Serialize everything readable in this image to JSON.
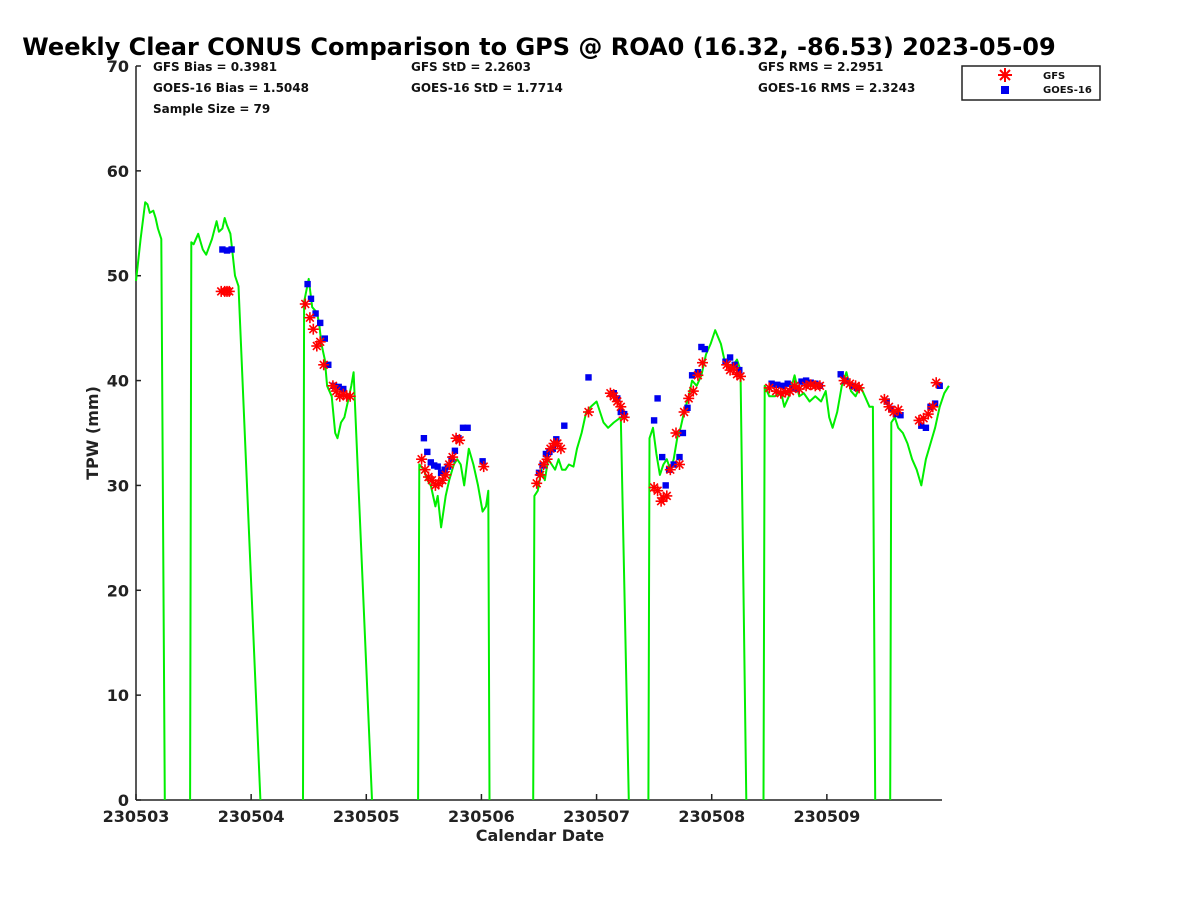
{
  "chart_data": {
    "type": "scatter",
    "title": "Weekly Clear CONUS Comparison to GPS @ ROA0 (16.32, -86.53) 2023-05-09",
    "xlabel": "Calendar Date",
    "ylabel": "TPW (mm)",
    "x_ticks": [
      "230503",
      "230504",
      "230505",
      "230506",
      "230507",
      "230508",
      "230509"
    ],
    "xlim": [
      "230503",
      "230510"
    ],
    "ylim": [
      0,
      70
    ],
    "y_ticks": [
      0,
      10,
      20,
      30,
      40,
      50,
      60,
      70
    ],
    "grid": false,
    "legend_placement": "top-right",
    "stats": {
      "gfs_bias": "GFS Bias = 0.3981",
      "goes_bias": "GOES-16 Bias = 1.5048",
      "sample_size": "Sample Size = 79",
      "gfs_std": "GFS StD = 2.2603",
      "goes_std": "GOES-16 StD = 1.7714",
      "gfs_rms": "GFS RMS = 2.2951",
      "goes_rms": "GOES-16 RMS = 2.3243"
    },
    "colors": {
      "gps": "#00ee00",
      "gfs": "#ff0000",
      "goes": "#0000ee"
    },
    "gps_line": [
      [
        3.0,
        49.5
      ],
      [
        3.04,
        53.5
      ],
      [
        3.08,
        57.0
      ],
      [
        3.1,
        56.8
      ],
      [
        3.12,
        56.0
      ],
      [
        3.15,
        56.2
      ],
      [
        3.17,
        55.5
      ],
      [
        3.19,
        54.5
      ],
      [
        3.22,
        53.5
      ],
      [
        3.25,
        0
      ],
      null,
      [
        3.47,
        0
      ],
      [
        3.48,
        53.2
      ],
      [
        3.5,
        53.0
      ],
      [
        3.54,
        54.0
      ],
      [
        3.58,
        52.5
      ],
      [
        3.61,
        52.0
      ],
      [
        3.66,
        53.5
      ],
      [
        3.7,
        55.2
      ],
      [
        3.72,
        54.2
      ],
      [
        3.75,
        54.5
      ],
      [
        3.77,
        55.5
      ],
      [
        3.79,
        54.8
      ],
      [
        3.82,
        54.0
      ],
      [
        3.84,
        52.0
      ],
      [
        3.86,
        50.0
      ],
      [
        3.89,
        49.0
      ],
      [
        4.08,
        0
      ],
      null,
      [
        4.45,
        0
      ],
      [
        4.46,
        47.5
      ],
      [
        4.5,
        49.7
      ],
      [
        4.53,
        47.0
      ],
      [
        4.57,
        46.5
      ],
      [
        4.59,
        45.5
      ],
      [
        4.61,
        43.5
      ],
      [
        4.64,
        42.0
      ],
      [
        4.66,
        39.5
      ],
      [
        4.7,
        38.5
      ],
      [
        4.73,
        35.0
      ],
      [
        4.75,
        34.5
      ],
      [
        4.78,
        36.0
      ],
      [
        4.81,
        36.5
      ],
      [
        4.84,
        38.0
      ],
      [
        4.87,
        39.5
      ],
      [
        4.89,
        40.8
      ],
      [
        5.05,
        0
      ],
      null,
      [
        5.45,
        0
      ],
      [
        5.46,
        32.0
      ],
      [
        5.5,
        31.5
      ],
      [
        5.53,
        30.5
      ],
      [
        5.56,
        30.0
      ],
      [
        5.6,
        28.0
      ],
      [
        5.62,
        29.0
      ],
      [
        5.65,
        26.0
      ],
      [
        5.69,
        29.0
      ],
      [
        5.72,
        30.5
      ],
      [
        5.76,
        32.0
      ],
      [
        5.79,
        32.5
      ],
      [
        5.82,
        32.0
      ],
      [
        5.85,
        30.0
      ],
      [
        5.89,
        33.5
      ],
      [
        5.93,
        32.0
      ],
      [
        5.97,
        30.0
      ],
      [
        6.01,
        27.5
      ],
      [
        6.04,
        28.0
      ],
      [
        6.06,
        29.5
      ],
      [
        6.07,
        0
      ],
      null,
      [
        6.45,
        0
      ],
      [
        6.46,
        29.0
      ],
      [
        6.49,
        29.5
      ],
      [
        6.52,
        31.5
      ],
      [
        6.55,
        30.5
      ],
      [
        6.58,
        32.5
      ],
      [
        6.61,
        32.0
      ],
      [
        6.64,
        31.5
      ],
      [
        6.67,
        32.5
      ],
      [
        6.7,
        31.5
      ],
      [
        6.73,
        31.5
      ],
      [
        6.76,
        32.0
      ],
      [
        6.8,
        31.8
      ],
      [
        6.83,
        33.5
      ],
      [
        6.87,
        35.0
      ],
      [
        6.91,
        37.0
      ],
      [
        6.95,
        37.5
      ],
      [
        7.0,
        38.0
      ],
      [
        7.06,
        36.0
      ],
      [
        7.1,
        35.5
      ],
      [
        7.15,
        36.0
      ],
      [
        7.21,
        36.5
      ],
      [
        7.28,
        0
      ],
      null,
      [
        7.45,
        0
      ],
      [
        7.46,
        34.5
      ],
      [
        7.49,
        35.5
      ],
      [
        7.52,
        33.0
      ],
      [
        7.55,
        31.0
      ],
      [
        7.58,
        32.0
      ],
      [
        7.61,
        32.5
      ],
      [
        7.64,
        31.5
      ],
      [
        7.67,
        32.5
      ],
      [
        7.7,
        34.5
      ],
      [
        7.73,
        35.5
      ],
      [
        7.76,
        37.0
      ],
      [
        7.8,
        38.5
      ],
      [
        7.83,
        40.0
      ],
      [
        7.87,
        39.5
      ],
      [
        7.91,
        40.5
      ],
      [
        7.95,
        42.5
      ],
      [
        7.99,
        43.5
      ],
      [
        8.03,
        44.8
      ],
      [
        8.08,
        43.5
      ],
      [
        8.12,
        41.5
      ],
      [
        8.17,
        41.2
      ],
      [
        8.22,
        42.0
      ],
      [
        8.25,
        41.0
      ],
      [
        8.3,
        0
      ],
      null,
      [
        8.45,
        0
      ],
      [
        8.46,
        39.5
      ],
      [
        8.5,
        38.5
      ],
      [
        8.55,
        38.5
      ],
      [
        8.6,
        39.0
      ],
      [
        8.63,
        37.5
      ],
      [
        8.67,
        38.5
      ],
      [
        8.72,
        40.5
      ],
      [
        8.76,
        38.5
      ],
      [
        8.8,
        38.8
      ],
      [
        8.85,
        38.0
      ],
      [
        8.9,
        38.5
      ],
      [
        8.95,
        38.0
      ],
      [
        8.99,
        39.0
      ],
      [
        9.02,
        36.5
      ],
      [
        9.05,
        35.5
      ],
      [
        9.09,
        37.0
      ],
      [
        9.13,
        39.5
      ],
      [
        9.17,
        40.8
      ],
      [
        9.21,
        39.0
      ],
      [
        9.25,
        38.5
      ],
      [
        9.29,
        39.5
      ],
      [
        9.33,
        38.5
      ],
      [
        9.37,
        37.5
      ],
      [
        9.4,
        37.5
      ],
      [
        9.42,
        0
      ],
      null,
      [
        9.55,
        0
      ],
      [
        9.56,
        36.0
      ],
      [
        9.59,
        36.5
      ],
      [
        9.62,
        35.5
      ],
      [
        9.66,
        35.0
      ],
      [
        9.7,
        34.0
      ],
      [
        9.74,
        32.5
      ],
      [
        9.78,
        31.5
      ],
      [
        9.82,
        30.0
      ],
      [
        9.86,
        32.5
      ],
      [
        9.9,
        34.0
      ],
      [
        9.94,
        35.5
      ],
      [
        9.98,
        37.5
      ],
      [
        10.02,
        38.8
      ],
      [
        10.06,
        39.5
      ]
    ],
    "gfs_points": [
      [
        3.74,
        48.5
      ],
      [
        3.77,
        48.5
      ],
      [
        3.79,
        48.5
      ],
      [
        3.81,
        48.5
      ],
      [
        4.47,
        47.3
      ],
      [
        4.51,
        46.0
      ],
      [
        4.54,
        44.9
      ],
      [
        4.57,
        43.3
      ],
      [
        4.6,
        43.7
      ],
      [
        4.63,
        41.5
      ],
      [
        4.71,
        39.5
      ],
      [
        4.74,
        39.0
      ],
      [
        4.77,
        38.5
      ],
      [
        4.8,
        38.7
      ],
      [
        4.83,
        38.5
      ],
      [
        4.86,
        38.5
      ],
      [
        5.48,
        32.5
      ],
      [
        5.51,
        31.5
      ],
      [
        5.54,
        30.8
      ],
      [
        5.57,
        30.5
      ],
      [
        5.6,
        30.0
      ],
      [
        5.63,
        30.2
      ],
      [
        5.66,
        30.5
      ],
      [
        5.69,
        31.0
      ],
      [
        5.72,
        32.0
      ],
      [
        5.75,
        32.7
      ],
      [
        5.78,
        34.5
      ],
      [
        5.81,
        34.3
      ],
      [
        6.02,
        31.8
      ],
      [
        6.48,
        30.2
      ],
      [
        6.51,
        31.0
      ],
      [
        6.54,
        32.0
      ],
      [
        6.57,
        32.5
      ],
      [
        6.6,
        33.5
      ],
      [
        6.63,
        34.0
      ],
      [
        6.66,
        34.0
      ],
      [
        6.69,
        33.5
      ],
      [
        6.93,
        37.0
      ],
      [
        7.12,
        38.8
      ],
      [
        7.15,
        38.5
      ],
      [
        7.18,
        38.0
      ],
      [
        7.21,
        37.5
      ],
      [
        7.24,
        36.5
      ],
      [
        7.5,
        29.8
      ],
      [
        7.53,
        29.5
      ],
      [
        7.56,
        28.5
      ],
      [
        7.58,
        28.8
      ],
      [
        7.61,
        29.0
      ],
      [
        7.64,
        31.5
      ],
      [
        7.69,
        35.0
      ],
      [
        7.72,
        32.0
      ],
      [
        7.76,
        37.0
      ],
      [
        7.8,
        38.3
      ],
      [
        7.84,
        39.0
      ],
      [
        7.88,
        40.5
      ],
      [
        7.92,
        41.7
      ],
      [
        8.13,
        41.5
      ],
      [
        8.16,
        41.0
      ],
      [
        8.19,
        41.2
      ],
      [
        8.22,
        40.6
      ],
      [
        8.25,
        40.4
      ],
      [
        8.5,
        39.3
      ],
      [
        8.56,
        39.0
      ],
      [
        8.6,
        38.8
      ],
      [
        8.64,
        38.9
      ],
      [
        8.68,
        39.0
      ],
      [
        8.72,
        39.5
      ],
      [
        8.76,
        39.2
      ],
      [
        8.82,
        39.5
      ],
      [
        8.86,
        39.6
      ],
      [
        8.9,
        39.5
      ],
      [
        8.94,
        39.5
      ],
      [
        9.15,
        40.0
      ],
      [
        9.2,
        39.7
      ],
      [
        9.25,
        39.5
      ],
      [
        9.28,
        39.3
      ],
      [
        9.5,
        38.2
      ],
      [
        9.54,
        37.5
      ],
      [
        9.58,
        37.0
      ],
      [
        9.62,
        37.2
      ],
      [
        9.8,
        36.2
      ],
      [
        9.84,
        36.4
      ],
      [
        9.88,
        36.8
      ],
      [
        9.92,
        37.5
      ],
      [
        9.95,
        39.8
      ]
    ],
    "goes_points": [
      [
        3.75,
        52.5
      ],
      [
        3.79,
        52.4
      ],
      [
        3.83,
        52.5
      ],
      [
        4.49,
        49.2
      ],
      [
        4.52,
        47.8
      ],
      [
        4.56,
        46.4
      ],
      [
        4.6,
        45.5
      ],
      [
        4.64,
        44.0
      ],
      [
        4.67,
        41.5
      ],
      [
        4.72,
        39.5
      ],
      [
        4.76,
        39.4
      ],
      [
        4.8,
        39.2
      ],
      [
        5.5,
        34.5
      ],
      [
        5.53,
        33.2
      ],
      [
        5.56,
        32.2
      ],
      [
        5.59,
        31.9
      ],
      [
        5.62,
        31.8
      ],
      [
        5.65,
        31.2
      ],
      [
        5.68,
        31.5
      ],
      [
        5.71,
        31.8
      ],
      [
        5.74,
        32.5
      ],
      [
        5.77,
        33.3
      ],
      [
        5.8,
        34.5
      ],
      [
        5.84,
        35.5
      ],
      [
        5.88,
        35.5
      ],
      [
        6.01,
        32.3
      ],
      [
        6.5,
        31.2
      ],
      [
        6.53,
        31.9
      ],
      [
        6.56,
        33.0
      ],
      [
        6.59,
        33.2
      ],
      [
        6.62,
        33.5
      ],
      [
        6.65,
        34.4
      ],
      [
        6.72,
        35.7
      ],
      [
        6.93,
        40.3
      ],
      [
        7.15,
        38.8
      ],
      [
        7.18,
        38.3
      ],
      [
        7.21,
        37.0
      ],
      [
        7.24,
        36.8
      ],
      [
        7.5,
        36.2
      ],
      [
        7.53,
        38.3
      ],
      [
        7.57,
        32.7
      ],
      [
        7.6,
        30.0
      ],
      [
        7.63,
        31.5
      ],
      [
        7.67,
        32.0
      ],
      [
        7.72,
        32.7
      ],
      [
        7.75,
        35.0
      ],
      [
        7.79,
        37.4
      ],
      [
        7.83,
        40.5
      ],
      [
        7.88,
        40.8
      ],
      [
        7.91,
        43.2
      ],
      [
        7.94,
        43.0
      ],
      [
        8.12,
        41.8
      ],
      [
        8.16,
        42.2
      ],
      [
        8.2,
        41.5
      ],
      [
        8.24,
        41.0
      ],
      [
        8.52,
        39.7
      ],
      [
        8.57,
        39.6
      ],
      [
        8.62,
        39.5
      ],
      [
        8.66,
        39.7
      ],
      [
        8.7,
        39.3
      ],
      [
        8.74,
        39.2
      ],
      [
        8.78,
        39.9
      ],
      [
        8.82,
        40.0
      ],
      [
        8.86,
        39.8
      ],
      [
        8.9,
        39.7
      ],
      [
        8.94,
        39.5
      ],
      [
        9.12,
        40.6
      ],
      [
        9.16,
        40.0
      ],
      [
        9.22,
        39.5
      ],
      [
        9.26,
        39.3
      ],
      [
        9.52,
        38.0
      ],
      [
        9.56,
        37.3
      ],
      [
        9.6,
        36.8
      ],
      [
        9.64,
        36.7
      ],
      [
        9.82,
        35.7
      ],
      [
        9.86,
        35.5
      ],
      [
        9.9,
        37.5
      ],
      [
        9.94,
        37.8
      ],
      [
        9.98,
        39.5
      ]
    ]
  },
  "legend": {
    "gfs": "GFS",
    "goes": "GOES-16"
  }
}
